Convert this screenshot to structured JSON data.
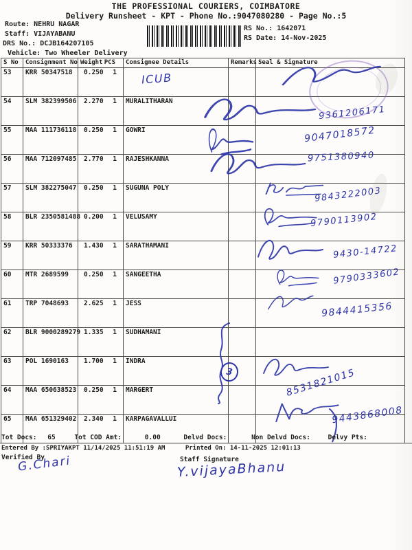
{
  "header": {
    "title": "THE PROFESSIONAL COURIERS, COIMBATORE",
    "subtitle": "Delivery Runsheet - KPT - Phone No.:9047080280 - Page No.:5"
  },
  "meta": {
    "route_label": "Route:",
    "route": "NEHRU NAGAR",
    "staff_label": "Staff:",
    "staff": "VIJAYABANU",
    "drs_label": "DRS No.:",
    "drs": "DCJB164207105",
    "vehicle_label": "Vehicle:",
    "vehicle": "Two Wheeler Delivery",
    "rs_no_label": "RS No.:",
    "rs_no": "1642071",
    "rs_date_label": "RS Date:",
    "rs_date": "14-Nov-2025"
  },
  "table": {
    "headers": {
      "sno": "S No",
      "consignment": "Consignment No",
      "weight": "Weight",
      "pcs": "PCS",
      "consignee": "Consignee Details",
      "remarks": "Remarks",
      "seal": "Seal & Signature"
    },
    "rows": [
      {
        "sno": "53",
        "consignment": "KRR 50347518",
        "weight": "0.250",
        "pcs": "1",
        "consignee": "",
        "phone": "",
        "stamp": true
      },
      {
        "sno": "54",
        "consignment": "SLM 382399506",
        "weight": "2.270",
        "pcs": "1",
        "consignee": "MURALITHARAN",
        "phone": "9361206171"
      },
      {
        "sno": "55",
        "consignment": "MAA 111736118",
        "weight": "0.250",
        "pcs": "1",
        "consignee": "GOWRI",
        "phone": "9047018572"
      },
      {
        "sno": "56",
        "consignment": "MAA 712097485",
        "weight": "2.770",
        "pcs": "1",
        "consignee": "RAJESHKANNA",
        "phone": "9751380940"
      },
      {
        "sno": "57",
        "consignment": "SLM 382275047",
        "weight": "0.250",
        "pcs": "1",
        "consignee": "SUGUNA POLY",
        "phone": "9843222003"
      },
      {
        "sno": "58",
        "consignment": "BLR 2350581488",
        "weight": "0.200",
        "pcs": "1",
        "consignee": "VELUSAMY",
        "phone": "9790113902"
      },
      {
        "sno": "59",
        "consignment": "KRR 50333376",
        "weight": "1.430",
        "pcs": "1",
        "consignee": "SARATHAMANI",
        "phone": "9430-14722"
      },
      {
        "sno": "60",
        "consignment": "MTR 2689599",
        "weight": "0.250",
        "pcs": "1",
        "consignee": "SANGEETHA",
        "phone": "9790333602"
      },
      {
        "sno": "61",
        "consignment": "TRP 7048693",
        "weight": "2.625",
        "pcs": "1",
        "consignee": "JESS",
        "phone": "9844415356"
      },
      {
        "sno": "62",
        "consignment": "BLR 9000289279",
        "weight": "1.335",
        "pcs": "1",
        "consignee": "SUDHAMANI",
        "phone": ""
      },
      {
        "sno": "63",
        "consignment": "POL 1690163",
        "weight": "1.700",
        "pcs": "1",
        "consignee": "INDRA",
        "phone": ""
      },
      {
        "sno": "64",
        "consignment": "MAA 650638523",
        "weight": "0.250",
        "pcs": "1",
        "consignee": "MARGERT",
        "phone": "8531821015"
      },
      {
        "sno": "65",
        "consignment": "MAA 651329402",
        "weight": "2.340",
        "pcs": "1",
        "consignee": "KARPAGAVALLUI",
        "phone": "9443868008"
      }
    ]
  },
  "annotations": {
    "icub": "ICUB",
    "circled": "3"
  },
  "footer": {
    "tot_docs_label": "Tot Docs:",
    "tot_docs": "65",
    "tot_cod_label": "Tot COD Amt:",
    "tot_cod": "0.00",
    "delvd_label": "Delvd Docs:",
    "delvd": "",
    "non_delvd_label": "Non Delvd Docs:",
    "non_delvd": "",
    "delvy_pts_label": "Delvy Pts:",
    "delvy_pts": "",
    "entered_by": "Entered By :SPRIYAKPT 11/14/2025 11:51:19 AM",
    "printed_on": "Printed On: 14-11-2025 12:01:13",
    "verified_by_label": "Verified By",
    "staff_signature_label": "Staff Signature",
    "verified_signature": "G.Chari",
    "staff_signature": "Y.vijayaBhanu"
  }
}
